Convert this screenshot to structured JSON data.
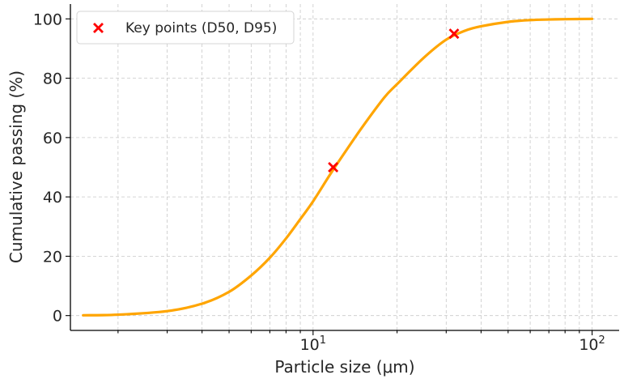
{
  "chart_data": {
    "type": "line",
    "xlabel": "Particle size (μm)",
    "ylabel": "Cumulative passing (%)",
    "x_scale": "log",
    "xlim": [
      1.35,
      125
    ],
    "ylim": [
      -5,
      105
    ],
    "grid": "both, dashed, including minor log ticks",
    "x_ticks": [
      {
        "value": 10,
        "base": "10",
        "exp": "1"
      },
      {
        "value": 100,
        "base": "10",
        "exp": "2"
      }
    ],
    "y_ticks": [
      0,
      20,
      40,
      60,
      80,
      100
    ],
    "series": [
      {
        "kind": "line",
        "color": "#FFA500",
        "x": [
          1.5,
          2,
          3,
          4,
          5,
          6,
          7,
          8,
          9,
          10,
          11.5,
          13,
          15,
          18,
          20,
          25,
          30,
          35,
          40,
          50,
          60,
          70,
          80,
          100
        ],
        "y": [
          0.1,
          0.3,
          1.5,
          4,
          8,
          13.5,
          19.5,
          26,
          32.5,
          38.5,
          47.5,
          55,
          63.5,
          73.5,
          78,
          87,
          93,
          96,
          97.5,
          99,
          99.6,
          99.8,
          99.9,
          100
        ]
      },
      {
        "kind": "scatter",
        "name": "Key points (D50, D95)",
        "color": "#FF0000",
        "marker": "x",
        "points": [
          {
            "x": 11.8,
            "y": 50
          },
          {
            "x": 32,
            "y": 95
          }
        ]
      }
    ],
    "legend": {
      "position": "top-left"
    }
  }
}
